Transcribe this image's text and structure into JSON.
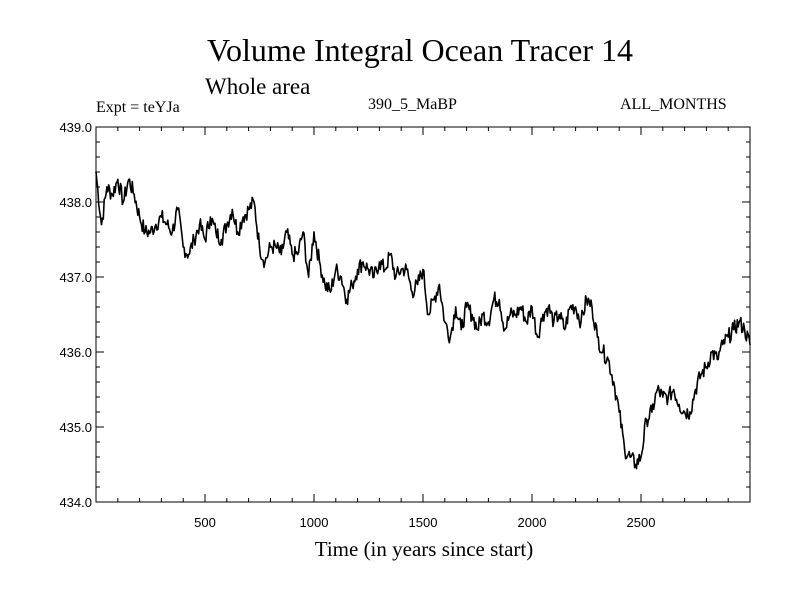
{
  "chart_data": {
    "type": "line",
    "title": "Volume Integral Ocean Tracer 14",
    "subtitle": "Whole area",
    "experiment_label": "Expt = teYJa",
    "scenario_label": "390_5_MaBP",
    "months_label": "ALL_MONTHS",
    "xlabel": "Time (in years since start)",
    "ylabel": "",
    "xlim": [
      0,
      3000
    ],
    "ylim": [
      434.0,
      439.0
    ],
    "x_ticks": [
      500,
      1000,
      1500,
      2000,
      2500
    ],
    "x_tick_labels": [
      "500",
      "1000",
      "1500",
      "2000",
      "2500"
    ],
    "y_ticks": [
      434.0,
      435.0,
      436.0,
      437.0,
      438.0,
      439.0
    ],
    "y_tick_labels": [
      "434.0",
      "435.0",
      "436.0",
      "437.0",
      "438.0",
      "439.0"
    ],
    "grid": false,
    "series": [
      {
        "name": "Volume Integral Ocean Tracer 14",
        "color": "#000000",
        "x": [
          0,
          25,
          50,
          75,
          100,
          125,
          150,
          175,
          200,
          225,
          250,
          275,
          300,
          325,
          350,
          375,
          400,
          425,
          450,
          475,
          500,
          525,
          550,
          575,
          600,
          625,
          650,
          675,
          700,
          725,
          750,
          775,
          800,
          825,
          850,
          875,
          900,
          925,
          950,
          975,
          1000,
          1025,
          1050,
          1075,
          1100,
          1125,
          1150,
          1175,
          1200,
          1225,
          1250,
          1275,
          1300,
          1325,
          1350,
          1375,
          1400,
          1425,
          1450,
          1475,
          1500,
          1525,
          1550,
          1575,
          1600,
          1625,
          1650,
          1675,
          1700,
          1725,
          1750,
          1775,
          1800,
          1825,
          1850,
          1875,
          1900,
          1925,
          1950,
          1975,
          2000,
          2025,
          2050,
          2075,
          2100,
          2125,
          2150,
          2175,
          2200,
          2225,
          2250,
          2275,
          2300,
          2325,
          2350,
          2375,
          2400,
          2425,
          2450,
          2475,
          2500,
          2525,
          2550,
          2575,
          2600,
          2625,
          2650,
          2675,
          2700,
          2725,
          2750,
          2775,
          2800,
          2825,
          2850,
          2875,
          2900,
          2925,
          2950,
          2975,
          3000
        ],
        "values": [
          438.4,
          437.7,
          438.2,
          438.1,
          438.3,
          438.0,
          438.3,
          438.1,
          437.8,
          437.6,
          437.6,
          437.7,
          437.8,
          437.7,
          437.6,
          437.9,
          437.4,
          437.3,
          437.5,
          437.7,
          437.5,
          437.8,
          437.6,
          437.5,
          437.7,
          437.9,
          437.6,
          437.8,
          437.9,
          438.0,
          437.4,
          437.2,
          437.4,
          437.4,
          437.3,
          437.6,
          437.3,
          437.3,
          437.6,
          437.0,
          437.6,
          437.2,
          436.9,
          436.8,
          437.1,
          437.0,
          436.7,
          436.9,
          437.1,
          437.2,
          437.1,
          437.0,
          437.2,
          437.1,
          437.3,
          437.0,
          437.1,
          437.1,
          436.8,
          436.9,
          437.1,
          436.5,
          436.7,
          436.9,
          436.4,
          436.2,
          436.6,
          436.3,
          436.6,
          436.5,
          436.3,
          436.5,
          436.4,
          436.7,
          436.7,
          436.3,
          436.5,
          436.5,
          436.6,
          436.4,
          436.6,
          436.2,
          436.5,
          436.6,
          436.4,
          436.5,
          436.3,
          436.6,
          436.6,
          436.4,
          436.7,
          436.6,
          436.2,
          436.0,
          435.9,
          435.6,
          435.2,
          434.7,
          434.6,
          434.5,
          434.6,
          435.1,
          435.2,
          435.5,
          435.4,
          435.4,
          435.5,
          435.3,
          435.2,
          435.2,
          435.5,
          435.7,
          435.8,
          436.0,
          435.9,
          436.1,
          436.2,
          436.3,
          436.4,
          436.3,
          436.1
        ]
      }
    ]
  }
}
